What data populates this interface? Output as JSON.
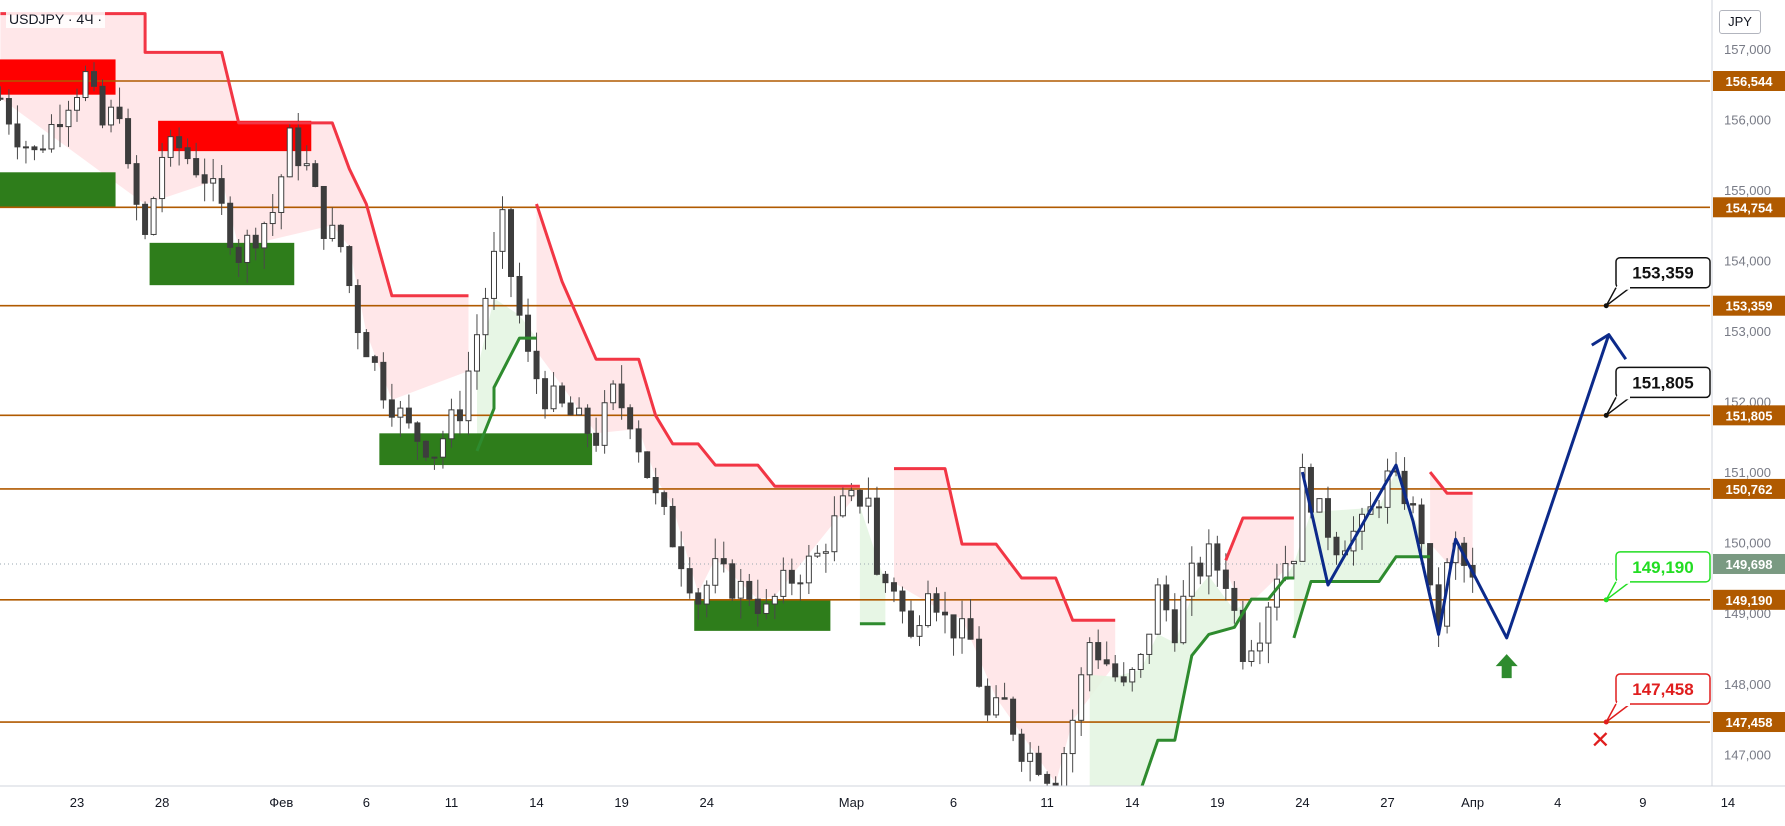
{
  "header": {
    "symbol": "USDJPY · 4Ч ·",
    "currency": "JPY"
  },
  "chart_data": {
    "type": "candlestick",
    "symbol": "USDJPY",
    "timeframe": "4Ч",
    "currency": "JPY",
    "ylim": [
      146.2,
      157.6
    ],
    "grid": false,
    "price_ticks": [
      "157,000",
      "156,000",
      "155,000",
      "154,000",
      "153,000",
      "152,000",
      "151,000",
      "150,000",
      "149,000",
      "148,000",
      "147,000"
    ],
    "price_tick_values": [
      157,
      156,
      155,
      154,
      153,
      152,
      151,
      150,
      149,
      148,
      147
    ],
    "time_ticks": [
      "23",
      "28",
      "Фев",
      "6",
      "11",
      "14",
      "19",
      "24",
      "Мар",
      "6",
      "11",
      "14",
      "19",
      "24",
      "27",
      "Апр",
      "4",
      "9",
      "14"
    ],
    "time_tick_index": [
      9,
      19,
      33,
      43,
      53,
      63,
      73,
      83,
      100,
      112,
      123,
      133,
      143,
      153,
      163,
      173,
      183,
      193,
      203
    ],
    "horizontal_levels": [
      {
        "label": "156,544",
        "value": 156.544,
        "color": "#b05a00"
      },
      {
        "label": "154,754",
        "value": 154.754,
        "color": "#b05a00"
      },
      {
        "label": "153,359",
        "value": 153.359,
        "color": "#b05a00"
      },
      {
        "label": "151,805",
        "value": 151.805,
        "color": "#b05a00"
      },
      {
        "label": "150,762",
        "value": 150.762,
        "color": "#b05a00"
      },
      {
        "label": "149,190",
        "value": 149.19,
        "color": "#b05a00"
      },
      {
        "label": "147,458",
        "value": 147.458,
        "color": "#b05a00"
      }
    ],
    "current_price": {
      "label": "149,698",
      "value": 149.698,
      "color": "#7a9a82"
    },
    "callouts": [
      {
        "label": "153,359",
        "value": 153.359,
        "style": "black"
      },
      {
        "label": "151,805",
        "value": 151.805,
        "style": "black"
      },
      {
        "label": "149,190",
        "value": 149.19,
        "style": "green"
      },
      {
        "label": "147,458",
        "value": 147.458,
        "style": "red"
      }
    ],
    "supply_zones": [
      {
        "i0": 0,
        "i1": 14,
        "p_low": 156.35,
        "p_high": 156.85,
        "color": "#ff0000"
      },
      {
        "i0": 19,
        "i1": 37,
        "p_low": 155.55,
        "p_high": 155.98,
        "color": "#ff0000"
      }
    ],
    "demand_zones": [
      {
        "i0": 0,
        "i1": 14,
        "p_low": 154.75,
        "p_high": 155.25,
        "color": "#2e7d1b"
      },
      {
        "i0": 18,
        "i1": 35,
        "p_low": 153.65,
        "p_high": 154.25,
        "color": "#2e7d1b"
      },
      {
        "i0": 45,
        "i1": 70,
        "p_low": 151.1,
        "p_high": 151.55,
        "color": "#2e7d1b"
      },
      {
        "i0": 82,
        "i1": 98,
        "p_low": 148.75,
        "p_high": 149.2,
        "color": "#2e7d1b"
      }
    ],
    "resistance_trail": [
      [
        [
          0,
          157.5
        ],
        [
          17,
          157.5
        ],
        [
          17,
          156.95
        ],
        [
          26,
          156.95
        ],
        [
          28,
          155.95
        ],
        [
          39,
          155.95
        ],
        [
          41,
          155.3
        ],
        [
          43,
          154.8
        ],
        [
          46,
          153.5
        ],
        [
          55,
          153.5
        ]
      ],
      [
        [
          63,
          154.8
        ],
        [
          66,
          153.7
        ],
        [
          70,
          152.6
        ],
        [
          75,
          152.6
        ],
        [
          77,
          151.8
        ],
        [
          79,
          151.4
        ],
        [
          82,
          151.4
        ],
        [
          84,
          151.1
        ],
        [
          89,
          151.1
        ],
        [
          91,
          150.8
        ],
        [
          101,
          150.8
        ]
      ],
      [
        [
          105,
          151.05
        ],
        [
          111,
          151.05
        ],
        [
          113,
          149.98
        ],
        [
          117,
          149.98
        ],
        [
          120,
          149.5
        ],
        [
          124,
          149.5
        ],
        [
          126,
          148.9
        ],
        [
          131,
          148.9
        ]
      ],
      [
        [
          144,
          149.75
        ],
        [
          146,
          150.35
        ],
        [
          152,
          150.35
        ]
      ],
      [
        [
          168,
          151.0
        ],
        [
          170,
          150.7
        ],
        [
          173,
          150.7
        ]
      ]
    ],
    "support_trail": [
      [
        [
          56,
          151.3
        ],
        [
          58,
          151.9
        ],
        [
          58,
          152.2
        ],
        [
          61,
          152.9
        ],
        [
          63,
          152.9
        ]
      ],
      [
        [
          101,
          148.85
        ],
        [
          104,
          148.85
        ]
      ],
      [
        [
          128,
          145.8
        ],
        [
          131,
          146.5
        ],
        [
          134,
          146.5
        ],
        [
          136,
          147.2
        ],
        [
          138,
          147.2
        ],
        [
          140,
          148.4
        ],
        [
          142,
          148.7
        ],
        [
          145,
          148.8
        ],
        [
          147,
          149.2
        ],
        [
          149,
          149.2
        ],
        [
          151,
          149.5
        ],
        [
          152,
          149.5
        ]
      ],
      [
        [
          152,
          148.65
        ],
        [
          154,
          149.45
        ],
        [
          162,
          149.45
        ],
        [
          164,
          149.8
        ],
        [
          168,
          149.8
        ]
      ]
    ],
    "projection_path": [
      [
        153,
        151.0
      ],
      [
        156,
        149.4
      ],
      [
        164,
        151.1
      ],
      [
        166,
        150.3
      ],
      [
        169,
        148.7
      ],
      [
        171,
        150.05
      ],
      [
        177,
        148.65
      ],
      [
        189,
        152.95
      ],
      [
        191,
        152.6
      ]
    ],
    "target_arrow": {
      "index": 177,
      "value": 148.25,
      "direction": "up",
      "color": "#2e8b2e"
    },
    "stop_marker": {
      "index": 188,
      "value": 147.2,
      "symbol": "✕",
      "color": "#e01e1e"
    },
    "plot_index_range": [
      0,
      200
    ]
  }
}
